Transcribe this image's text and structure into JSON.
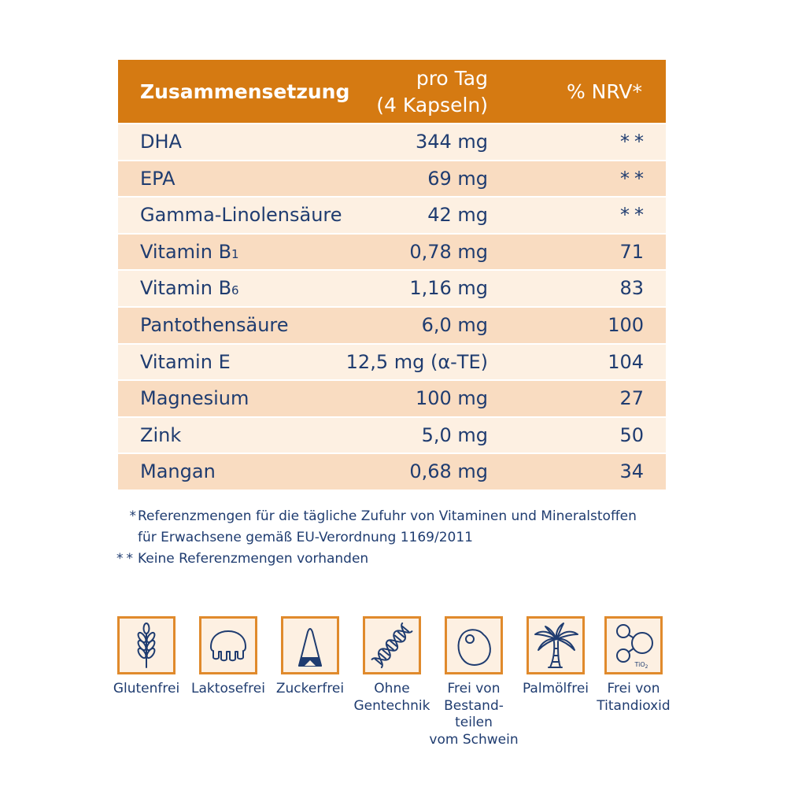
{
  "colors": {
    "header_bg": "#d57a12",
    "row_light": "#fdf0e2",
    "row_dark": "#f9dcc1",
    "ink": "#1f3c70",
    "header_text": "#ffffff",
    "icon_border": "#e08a2c",
    "icon_fill": "#fdf0e2"
  },
  "table": {
    "header": {
      "name": "Zusammensetzung",
      "amount_lines": [
        "pro Tag",
        "(4 Kapseln)"
      ],
      "nrv": "% NRV*"
    },
    "rows": [
      {
        "name": "DHA",
        "amount": "344 mg",
        "nrv": "**"
      },
      {
        "name": "EPA",
        "amount": "69 mg",
        "nrv": "**"
      },
      {
        "name": "Gamma-Linolensäure",
        "amount": "42 mg",
        "nrv": "**"
      },
      {
        "name": "Vitamin B",
        "name_sub": "1",
        "amount": "0,78 mg",
        "nrv": "71"
      },
      {
        "name": "Vitamin B",
        "name_sub": "6",
        "amount": "1,16 mg",
        "nrv": "83"
      },
      {
        "name": "Pantothensäure",
        "amount": "6,0 mg",
        "nrv": "100"
      },
      {
        "name": "Vitamin E",
        "amount": "12,5 mg (α-TE)",
        "nrv": "104"
      },
      {
        "name": "Magnesium",
        "amount": "100 mg",
        "nrv": "27"
      },
      {
        "name": "Zink",
        "amount": "5,0 mg",
        "nrv": "50"
      },
      {
        "name": "Mangan",
        "amount": "0,68 mg",
        "nrv": "34"
      }
    ]
  },
  "footnotes": [
    {
      "marker": "*",
      "lines": [
        "Referenzmengen für die tägliche Zufuhr von Vitaminen und Mineralstoffen",
        "für Erwachsene gemäß EU-Verordnung 1169/2011"
      ]
    },
    {
      "marker": "**",
      "lines": [
        "Keine Referenzmengen vorhanden"
      ]
    }
  ],
  "badges": [
    {
      "icon": "wheat-icon",
      "label_lines": [
        "Glutenfrei"
      ]
    },
    {
      "icon": "udder-icon",
      "label_lines": [
        "Laktosefrei"
      ]
    },
    {
      "icon": "sugar-loaf-icon",
      "label_lines": [
        "Zuckerfrei"
      ]
    },
    {
      "icon": "dna-icon",
      "label_lines": [
        "Ohne",
        "Gentechnik"
      ]
    },
    {
      "icon": "pork-cut-icon",
      "label_lines": [
        "Frei von",
        "Bestand-",
        "teilen",
        "vom Schwein"
      ]
    },
    {
      "icon": "palm-tree-icon",
      "label_lines": [
        "Palmölfrei"
      ]
    },
    {
      "icon": "tio2-molecule-icon",
      "label_lines": [
        "Frei von",
        "Titandioxid"
      ],
      "icon_text": {
        "main": "TiO",
        "sub": "2"
      }
    }
  ]
}
